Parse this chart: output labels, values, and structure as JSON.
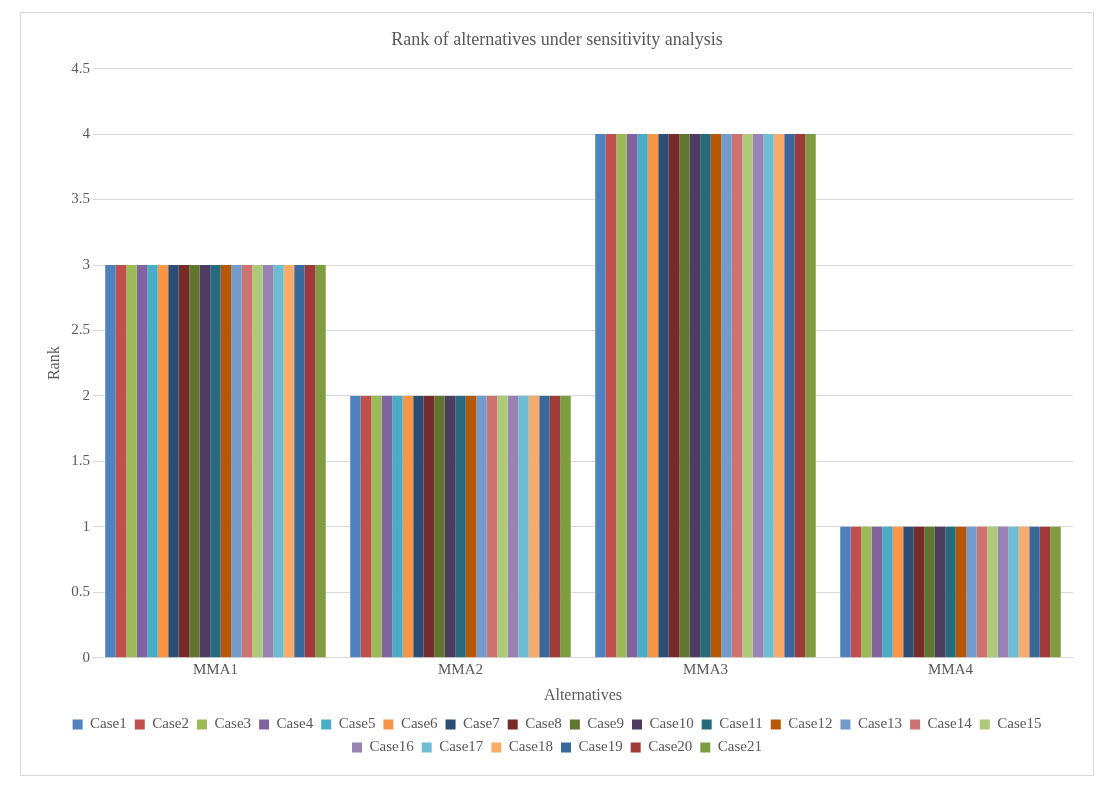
{
  "chart_data": {
    "type": "bar",
    "title": "Rank of alternatives under sensitivity analysis",
    "xlabel": "Alternatives",
    "ylabel": "Rank",
    "categories": [
      "MMA1",
      "MMA2",
      "MMA3",
      "MMA4"
    ],
    "ylim": [
      0,
      4.5
    ],
    "yticks": [
      0,
      0.5,
      1,
      1.5,
      2,
      2.5,
      3,
      3.5,
      4,
      4.5
    ],
    "grid": "y",
    "legend": "bottom",
    "series": [
      {
        "name": "Case1",
        "color": "#4f81bd",
        "values": [
          3,
          2,
          4,
          1
        ]
      },
      {
        "name": "Case2",
        "color": "#c0504d",
        "values": [
          3,
          2,
          4,
          1
        ]
      },
      {
        "name": "Case3",
        "color": "#9bbb59",
        "values": [
          3,
          2,
          4,
          1
        ]
      },
      {
        "name": "Case4",
        "color": "#8064a2",
        "values": [
          3,
          2,
          4,
          1
        ]
      },
      {
        "name": "Case5",
        "color": "#4bacc6",
        "values": [
          3,
          2,
          4,
          1
        ]
      },
      {
        "name": "Case6",
        "color": "#f79646",
        "values": [
          3,
          2,
          4,
          1
        ]
      },
      {
        "name": "Case7",
        "color": "#2c4d75",
        "values": [
          3,
          2,
          4,
          1
        ]
      },
      {
        "name": "Case8",
        "color": "#772c2a",
        "values": [
          3,
          2,
          4,
          1
        ]
      },
      {
        "name": "Case9",
        "color": "#5f7530",
        "values": [
          3,
          2,
          4,
          1
        ]
      },
      {
        "name": "Case10",
        "color": "#4d3b62",
        "values": [
          3,
          2,
          4,
          1
        ]
      },
      {
        "name": "Case11",
        "color": "#276a7c",
        "values": [
          3,
          2,
          4,
          1
        ]
      },
      {
        "name": "Case12",
        "color": "#b65708",
        "values": [
          3,
          2,
          4,
          1
        ]
      },
      {
        "name": "Case13",
        "color": "#729aca",
        "values": [
          3,
          2,
          4,
          1
        ]
      },
      {
        "name": "Case14",
        "color": "#cd7371",
        "values": [
          3,
          2,
          4,
          1
        ]
      },
      {
        "name": "Case15",
        "color": "#afc97a",
        "values": [
          3,
          2,
          4,
          1
        ]
      },
      {
        "name": "Case16",
        "color": "#9983b5",
        "values": [
          3,
          2,
          4,
          1
        ]
      },
      {
        "name": "Case17",
        "color": "#6fbdd1",
        "values": [
          3,
          2,
          4,
          1
        ]
      },
      {
        "name": "Case18",
        "color": "#f9ab6b",
        "values": [
          3,
          2,
          4,
          1
        ]
      },
      {
        "name": "Case19",
        "color": "#3a679c",
        "values": [
          3,
          2,
          4,
          1
        ]
      },
      {
        "name": "Case20",
        "color": "#9e3b38",
        "values": [
          3,
          2,
          4,
          1
        ]
      },
      {
        "name": "Case21",
        "color": "#7e9c40",
        "values": [
          3,
          2,
          4,
          1
        ]
      }
    ]
  }
}
